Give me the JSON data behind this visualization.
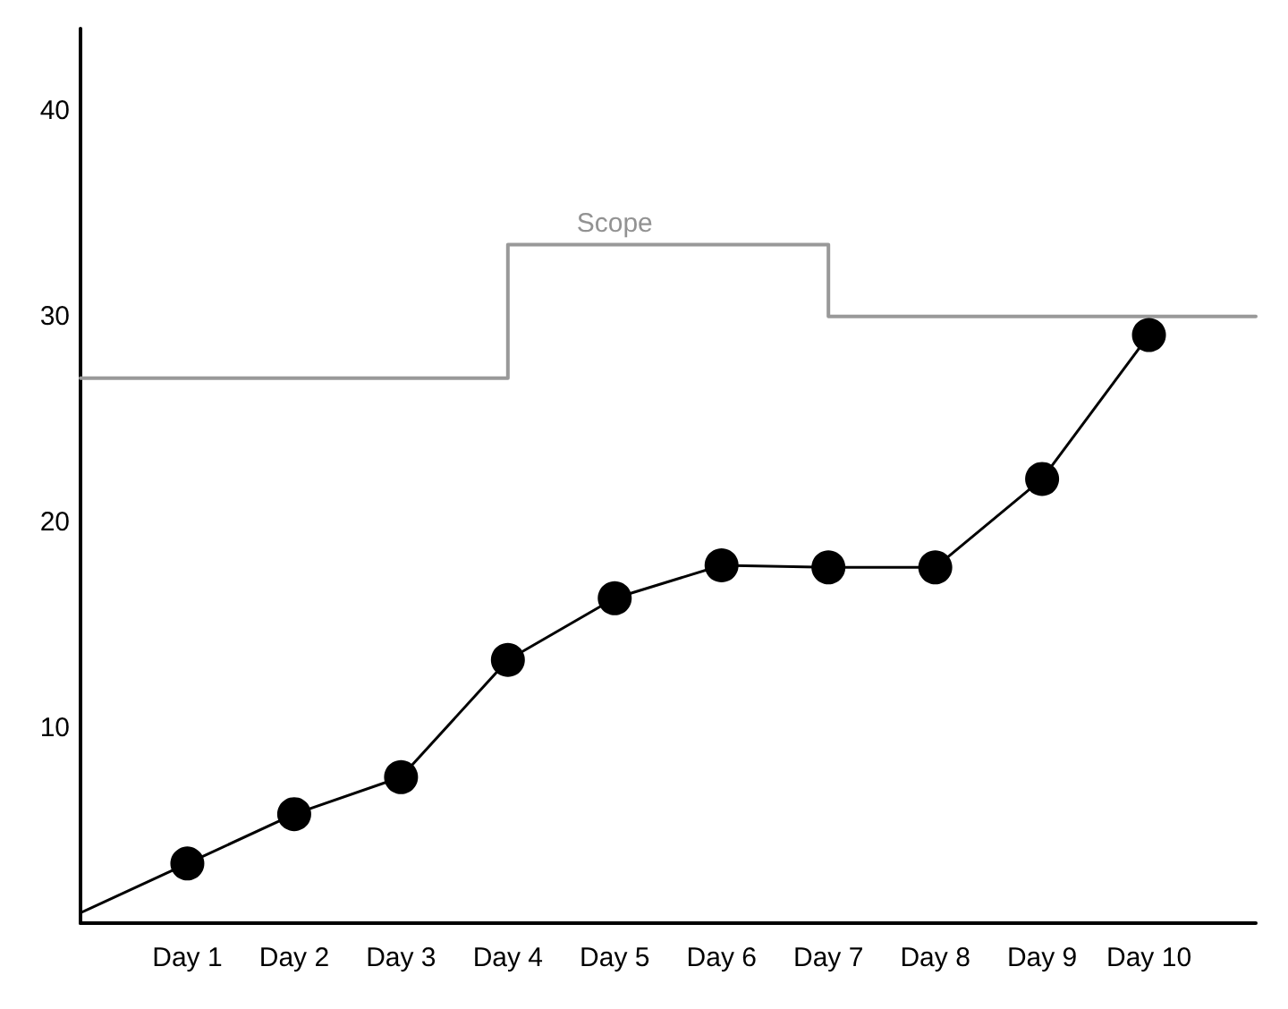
{
  "chart_data": {
    "type": "line",
    "categories": [
      null,
      "Day 1",
      "Day 2",
      "Day 3",
      "Day 4",
      "Day 5",
      "Day 6",
      "Day 7",
      "Day 8",
      "Day 9",
      "Day 10",
      null
    ],
    "ylim": [
      0.5,
      44
    ],
    "yticks": [
      10,
      20,
      30,
      40
    ],
    "series": [
      {
        "type": "step",
        "color": "#999999",
        "values": [
          27,
          27,
          27,
          27,
          33.5,
          33.5,
          33.5,
          30,
          30,
          30,
          30,
          30
        ],
        "marker": "none"
      },
      {
        "color": "#000000",
        "values": [
          1,
          3.4,
          5.8,
          7.6,
          13.3,
          16.3,
          17.9,
          17.8,
          17.8,
          22.1,
          29.1,
          null
        ],
        "marker": "circle"
      }
    ],
    "annotations": [
      {
        "text": "Scope",
        "x": "Day 5",
        "y": 33.5
      }
    ]
  }
}
